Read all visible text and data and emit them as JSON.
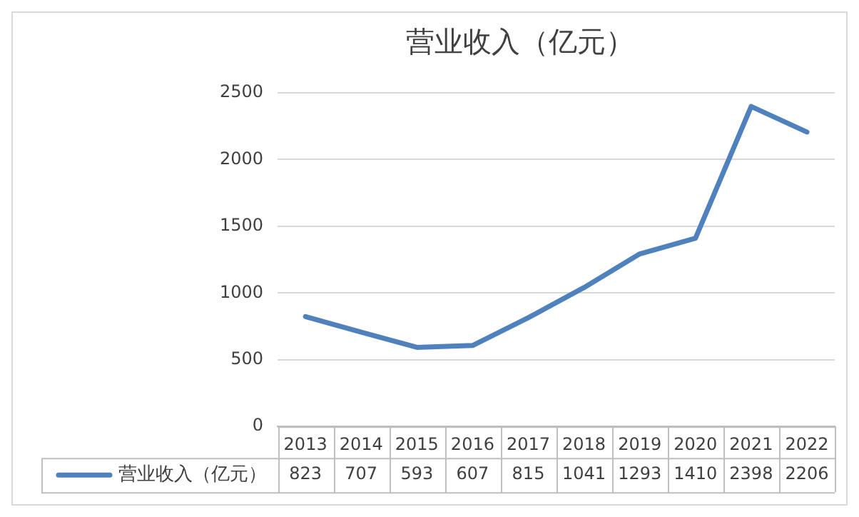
{
  "chart_data": {
    "type": "line",
    "title": "营业收入（亿元）",
    "categories": [
      "2013",
      "2014",
      "2015",
      "2016",
      "2017",
      "2018",
      "2019",
      "2020",
      "2021",
      "2022"
    ],
    "series": [
      {
        "name": "营业收入（亿元）",
        "color": "#4f81bd",
        "values": [
          823,
          707,
          593,
          607,
          815,
          1041,
          1293,
          1410,
          2398,
          2206
        ]
      }
    ],
    "ylim": [
      0,
      2500
    ],
    "yticks": [
      0,
      500,
      1000,
      1500,
      2000,
      2500
    ],
    "grid": "y",
    "legend": "bottom",
    "data_labels": true,
    "marker": "none",
    "line_style": "solid"
  }
}
